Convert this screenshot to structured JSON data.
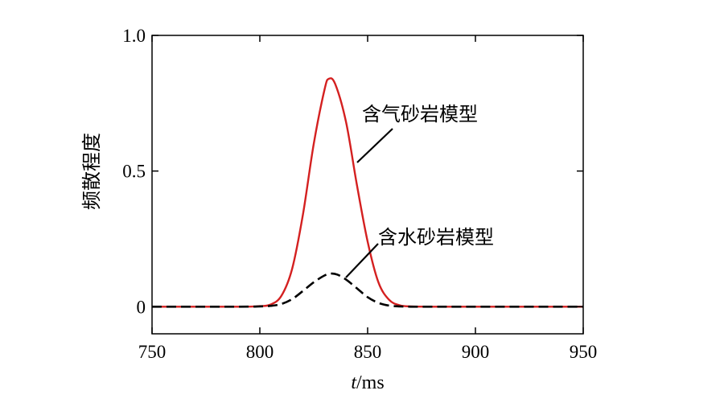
{
  "chart_data": {
    "type": "line",
    "xlabel_italic": "t",
    "xlabel_rest": "/ms",
    "ylabel": "频散程度",
    "xlim": [
      750,
      950
    ],
    "ylim": [
      -0.1,
      1.0
    ],
    "x_ticks": [
      750,
      800,
      850,
      900,
      950
    ],
    "x_tick_labels": [
      "750",
      "800",
      "850",
      "900",
      "950"
    ],
    "y_ticks": [
      0,
      0.5,
      1.0
    ],
    "y_tick_labels": [
      "0",
      "0.5",
      "1.0"
    ],
    "grid": false,
    "series": [
      {
        "name": "含气砂岩模型",
        "color": "#d42020",
        "style": "solid",
        "x": [
          750,
          790,
          800,
          805,
          810,
          815,
          820,
          825,
          830,
          832,
          835,
          840,
          845,
          850,
          855,
          860,
          865,
          870,
          880,
          900,
          950
        ],
        "y": [
          0,
          0,
          0.002,
          0.008,
          0.04,
          0.14,
          0.34,
          0.6,
          0.8,
          0.84,
          0.82,
          0.68,
          0.45,
          0.24,
          0.09,
          0.025,
          0.005,
          0.001,
          0,
          0,
          0
        ]
      },
      {
        "name": "含水砂岩模型",
        "color": "#000000",
        "style": "dashed",
        "x": [
          750,
          790,
          800,
          805,
          810,
          815,
          820,
          825,
          830,
          833,
          836,
          840,
          845,
          850,
          855,
          860,
          865,
          870,
          880,
          900,
          950
        ],
        "y": [
          0,
          0,
          0.001,
          0.003,
          0.01,
          0.028,
          0.058,
          0.09,
          0.115,
          0.122,
          0.118,
          0.1,
          0.068,
          0.035,
          0.014,
          0.004,
          0.001,
          0,
          0,
          0,
          0
        ]
      }
    ]
  },
  "annotations": {
    "gas_label": "含气砂岩模型",
    "water_label": "含水砂岩模型"
  }
}
